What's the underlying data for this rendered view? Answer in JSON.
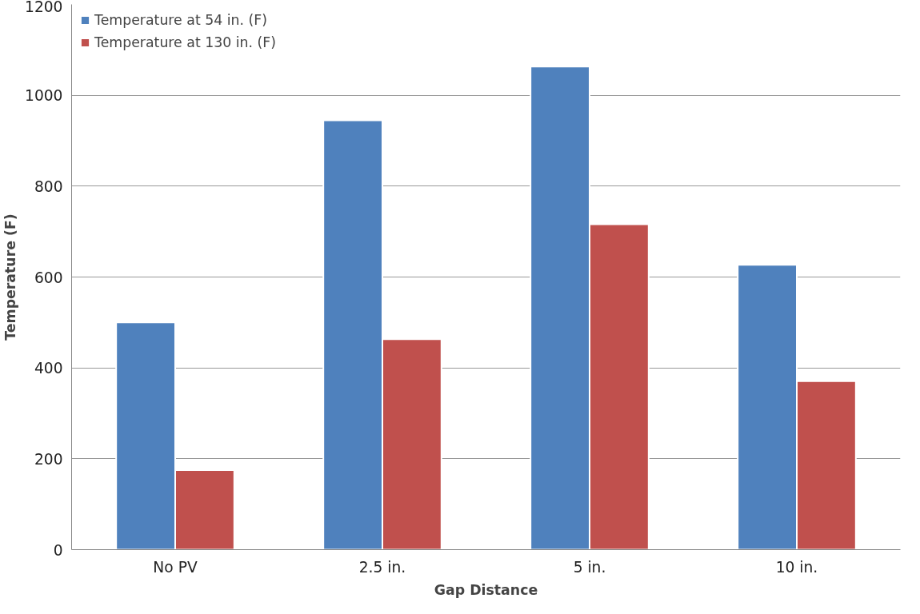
{
  "chart_data": {
    "type": "bar",
    "xlabel": "Gap Distance",
    "ylabel": "Temperature (F)",
    "categories": [
      "No PV",
      "2.5 in.",
      "5 in.",
      "10 in."
    ],
    "series": [
      {
        "name": "Temperature at 54 in. (F)",
        "color": "#4f81bd",
        "values": [
          500,
          945,
          1063,
          627
        ]
      },
      {
        "name": "Temperature at 130 in. (F)",
        "color": "#c0504d",
        "values": [
          175,
          463,
          716,
          371
        ]
      }
    ],
    "ylim": [
      0,
      1200
    ],
    "yticks": [
      0,
      200,
      400,
      600,
      800,
      1000,
      1200
    ],
    "grid": "y",
    "legend": "top left"
  }
}
